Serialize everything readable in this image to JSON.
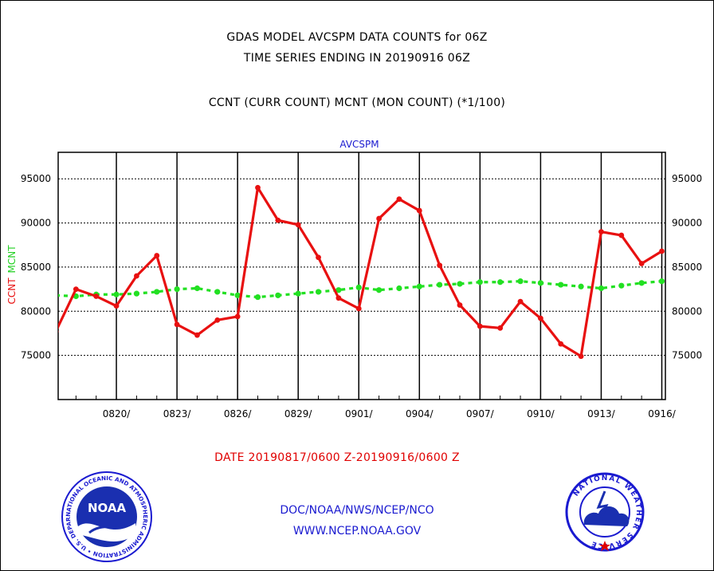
{
  "header": {
    "line1": "GDAS MODEL AVCSPM DATA COUNTS for 06Z",
    "line2": "TIME SERIES ENDING IN 20190916 06Z",
    "line3": "CCNT (CURR COUNT) MCNT (MON COUNT) (*1/100)"
  },
  "chart_data": {
    "type": "line",
    "title": "AVCSPM",
    "ylabel_ccnt": "CCNT",
    "ylabel_mcnt": "MCNT",
    "ylim": [
      70000,
      98000
    ],
    "yticks": [
      75000,
      80000,
      85000,
      90000,
      95000
    ],
    "ytick_labels": [
      "75000",
      "80000",
      "85000",
      "90000",
      "95000"
    ],
    "x_dates": [
      "0817",
      "0818",
      "0819",
      "0820",
      "0821",
      "0822",
      "0823",
      "0824",
      "0825",
      "0826",
      "0827",
      "0828",
      "0829",
      "0830",
      "0831",
      "0901",
      "0902",
      "0903",
      "0904",
      "0905",
      "0906",
      "0907",
      "0908",
      "0909",
      "0910",
      "0911",
      "0912",
      "0913",
      "0914",
      "0915",
      "0916"
    ],
    "xtick_labels": [
      "0820/",
      "0823/",
      "0826/",
      "0829/",
      "0901/",
      "0904/",
      "0907/",
      "0910/",
      "0913/",
      "0916/"
    ],
    "xtick_index": [
      3,
      6,
      9,
      12,
      15,
      18,
      21,
      24,
      27,
      30
    ],
    "series": [
      {
        "name": "CCNT",
        "color": "#e81010",
        "values": [
          77700,
          82500,
          81700,
          80600,
          84000,
          86300,
          78500,
          77300,
          79000,
          79400,
          94000,
          90300,
          89800,
          86100,
          81500,
          80300,
          90500,
          92700,
          91400,
          85200,
          80700,
          78300,
          78100,
          81100,
          79200,
          76300,
          74900,
          89000,
          88600,
          85400,
          86800
        ]
      },
      {
        "name": "MCNT",
        "color": "#22e022",
        "values": [
          81800,
          81700,
          81900,
          81900,
          82000,
          82200,
          82500,
          82600,
          82200,
          81800,
          81600,
          81800,
          82000,
          82200,
          82400,
          82700,
          82400,
          82600,
          82800,
          83000,
          83100,
          83300,
          83300,
          83400,
          83200,
          83000,
          82800,
          82600,
          82900,
          83200,
          83400
        ]
      }
    ],
    "grid": true
  },
  "footer": {
    "date_range": "DATE 20190817/0600 Z-20190916/0600 Z",
    "org": "DOC/NOAA/NWS/NCEP/NCO",
    "url": "WWW.NCEP.NOAA.GOV"
  },
  "logos": {
    "noaa_text": "NOAA",
    "noaa_ring": "NATIONAL OCEANIC AND ATMOSPHERIC ADMINISTRATION • U.S. DEPARTMENT OF COMMERCE •",
    "nws_ring": "NATIONAL WEATHER SERVICE"
  }
}
